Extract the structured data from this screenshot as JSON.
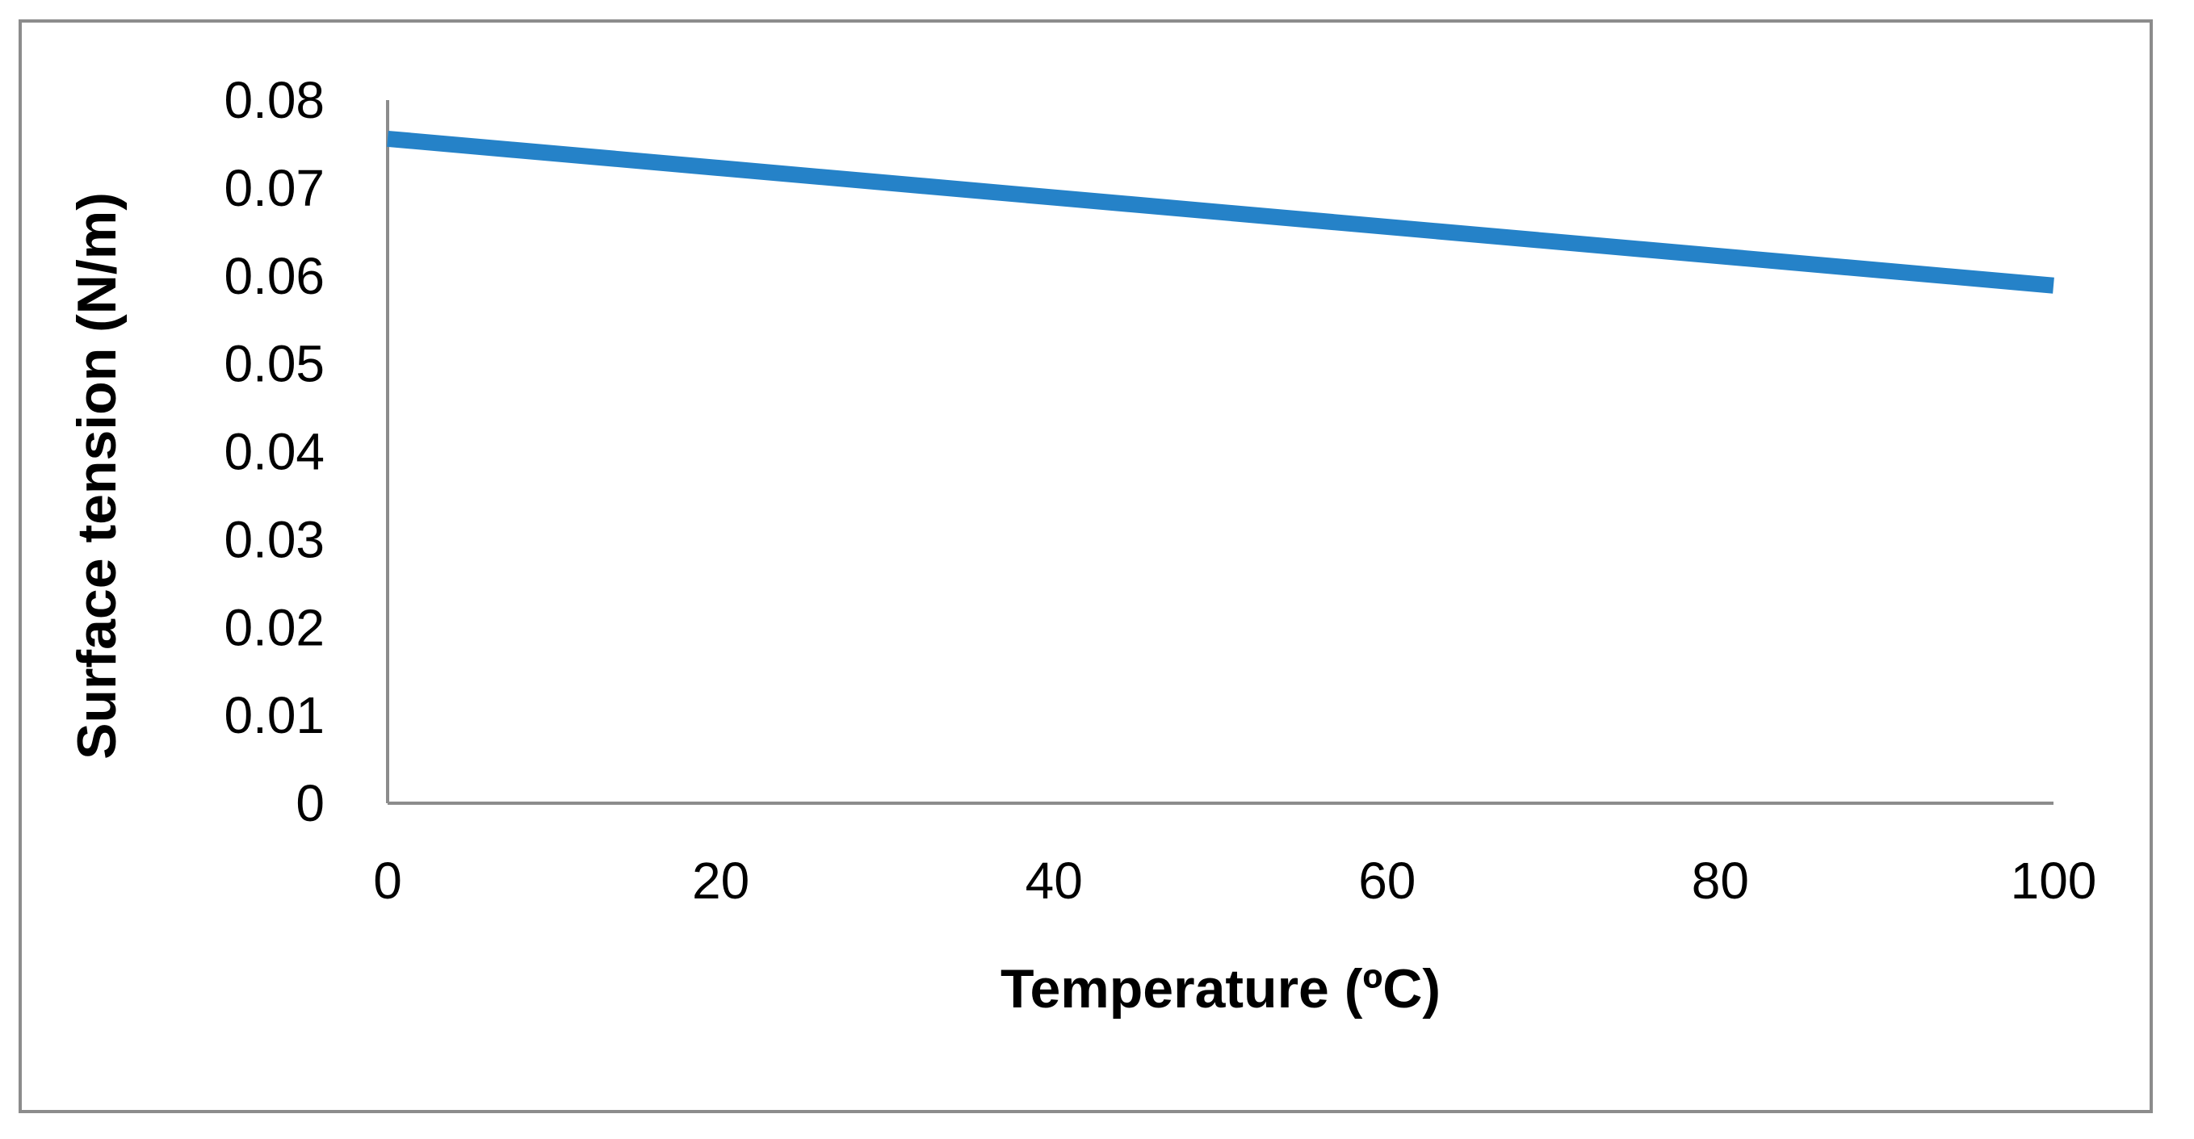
{
  "chart_data": {
    "type": "line",
    "title": "",
    "xlabel": "Temperature (ºC)",
    "ylabel": "Surface tension (N/m)",
    "xlim": [
      0,
      100
    ],
    "ylim": [
      0,
      0.08
    ],
    "x_ticks": [
      "0",
      "20",
      "40",
      "60",
      "80",
      "100"
    ],
    "y_ticks": [
      "0",
      "0.01",
      "0.02",
      "0.03",
      "0.04",
      "0.05",
      "0.06",
      "0.07",
      "0.08"
    ],
    "grid": false,
    "legend": "none",
    "series": [
      {
        "name": "Surface tension",
        "color": "#2582c8",
        "x": [
          0,
          100
        ],
        "y": [
          0.0756,
          0.0589
        ]
      }
    ]
  }
}
